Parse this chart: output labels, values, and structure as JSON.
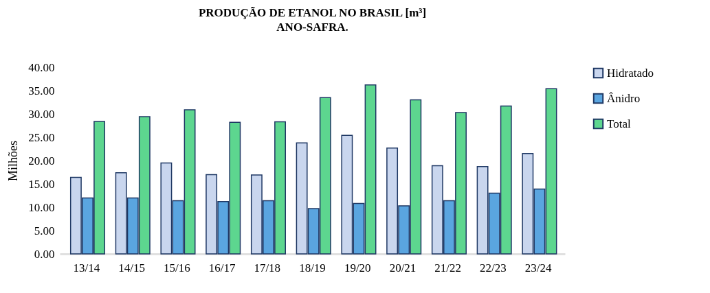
{
  "chart_data": {
    "type": "bar",
    "title": "PRODUÇÃO DE ETANOL NO BRASIL [m³]",
    "subtitle": "ANO-SAFRA.",
    "ylabel": "Milhões",
    "categories": [
      "13/14",
      "14/15",
      "15/16",
      "16/17",
      "17/18",
      "18/19",
      "19/20",
      "20/21",
      "21/22",
      "22/23",
      "23/24"
    ],
    "series": [
      {
        "name": "Hidratado",
        "color": "#c9d6ee",
        "values": [
          16.4,
          17.4,
          19.5,
          17.0,
          16.9,
          23.8,
          25.4,
          22.7,
          18.9,
          18.7,
          21.5
        ]
      },
      {
        "name": "Ânidro",
        "color": "#5aa5e0",
        "values": [
          12.0,
          12.0,
          11.4,
          11.2,
          11.4,
          9.7,
          10.8,
          10.3,
          11.4,
          13.0,
          13.9
        ]
      },
      {
        "name": "Total",
        "color": "#5dd68f",
        "values": [
          28.4,
          29.4,
          30.9,
          28.2,
          28.3,
          33.5,
          36.2,
          33.0,
          30.3,
          31.7,
          35.4
        ]
      }
    ],
    "ylim": [
      0,
      40
    ],
    "yticks": [
      {
        "value": 0,
        "label": "0.00"
      },
      {
        "value": 5,
        "label": "5.00"
      },
      {
        "value": 10,
        "label": "10.00"
      },
      {
        "value": 15,
        "label": "15.00"
      },
      {
        "value": 20,
        "label": "20.00"
      },
      {
        "value": 25,
        "label": "25.00"
      },
      {
        "value": 30,
        "label": "30.00"
      },
      {
        "value": 35,
        "label": "35.00"
      },
      {
        "value": 40,
        "label": "40.00"
      }
    ],
    "grid": false,
    "legend": "right"
  }
}
